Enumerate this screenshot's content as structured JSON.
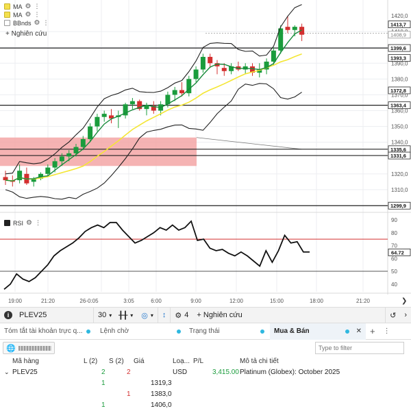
{
  "legend": [
    {
      "label": "MA",
      "color": "#f4e04d"
    },
    {
      "label": "MA",
      "color": "#f4e04d"
    },
    {
      "label": "BBnds",
      "color": "#ffffff"
    }
  ],
  "chart_research": "+ Nghiên cứu",
  "rsi_label": "RSI",
  "price_axis": [
    "1420,0",
    "1410,0",
    "1400,0",
    "1390,0",
    "1380,0",
    "1370,0",
    "1360,0",
    "1350,0",
    "1340,0",
    "1320,0",
    "1310,0",
    "1300,0"
  ],
  "rsi_axis": [
    "90",
    "80",
    "70",
    "60",
    "50",
    "40"
  ],
  "time_axis": [
    "19:00",
    "21:20",
    "26-0:05",
    "3:05",
    "6:00",
    "9:00",
    "12:00",
    "15:00",
    "18:00",
    "21:20"
  ],
  "price_tags": [
    {
      "value": "1413,7",
      "style": "dark"
    },
    {
      "value": "1408,9",
      "style": "light"
    },
    {
      "value": "1399,6",
      "style": "dark"
    },
    {
      "value": "1393,3",
      "style": "dark"
    },
    {
      "value": "1372,8",
      "style": "dark"
    },
    {
      "value": "1363,4",
      "style": "dark"
    },
    {
      "value": "1335,6",
      "style": "dark"
    },
    {
      "value": "1331,6",
      "style": "dark"
    },
    {
      "value": "1299,9",
      "style": "dark"
    }
  ],
  "rsi_tag": "64.72",
  "colors": {
    "up": "#1a9c3c",
    "down": "#d32f2f",
    "ma_fast": "#178a3a",
    "ma_slow": "#f4e634",
    "zone": "#f3a6a6"
  },
  "toolbar": {
    "symbol": "PLEV25",
    "interval": "30",
    "count": "4",
    "research": "+ Nghiên cứu"
  },
  "tabs": [
    {
      "label": "Tóm tắt tài khoản trực q..."
    },
    {
      "label": "Lệnh chờ"
    },
    {
      "label": "Trạng thái"
    },
    {
      "label": "Mua & Bán"
    }
  ],
  "filter_placeholder": "Type to filter",
  "table": {
    "headers": [
      "Mã hàng",
      "L (2)",
      "S (2)",
      "Giá",
      "Loạ...",
      "P/L",
      "Mô tả chi tiết"
    ],
    "group": {
      "symbol": "PLEV25",
      "l": "2",
      "s": "2",
      "type": "USD",
      "pl": "3,415.00",
      "desc": "Platinum (Globex): October 2025"
    },
    "rows": [
      {
        "l": "1",
        "s": "",
        "price": "1319,3"
      },
      {
        "l": "",
        "s": "1",
        "price": "1383,0"
      },
      {
        "l": "1",
        "s": "",
        "price": "1406,0"
      }
    ]
  },
  "chart_data": {
    "type": "candlestick",
    "y_range": [
      1296,
      1424
    ],
    "candles": [
      [
        1318,
        1322,
        1313,
        1316
      ],
      [
        1316,
        1319,
        1312,
        1315
      ],
      [
        1316,
        1326,
        1314,
        1322
      ],
      [
        1320,
        1324,
        1313,
        1314
      ],
      [
        1315,
        1318,
        1312,
        1317
      ],
      [
        1317,
        1321,
        1316,
        1320
      ],
      [
        1320,
        1326,
        1318,
        1324
      ],
      [
        1324,
        1330,
        1321,
        1328
      ],
      [
        1328,
        1333,
        1325,
        1331
      ],
      [
        1331,
        1335,
        1328,
        1333
      ],
      [
        1333,
        1339,
        1331,
        1337
      ],
      [
        1337,
        1344,
        1335,
        1342
      ],
      [
        1342,
        1352,
        1340,
        1350
      ],
      [
        1350,
        1358,
        1347,
        1356
      ],
      [
        1356,
        1360,
        1353,
        1358
      ],
      [
        1357,
        1361,
        1352,
        1355
      ],
      [
        1356,
        1360,
        1349,
        1357
      ],
      [
        1357,
        1365,
        1355,
        1364
      ],
      [
        1364,
        1368,
        1361,
        1366
      ],
      [
        1366,
        1367,
        1360,
        1361
      ],
      [
        1361,
        1365,
        1357,
        1363
      ],
      [
        1363,
        1366,
        1358,
        1360
      ],
      [
        1360,
        1366,
        1357,
        1364
      ],
      [
        1364,
        1372,
        1362,
        1370
      ],
      [
        1370,
        1375,
        1366,
        1373
      ],
      [
        1373,
        1378,
        1369,
        1371
      ],
      [
        1371,
        1382,
        1369,
        1380
      ],
      [
        1380,
        1388,
        1378,
        1386
      ],
      [
        1386,
        1396,
        1384,
        1394
      ],
      [
        1394,
        1396,
        1387,
        1390
      ],
      [
        1390,
        1392,
        1383,
        1388
      ],
      [
        1387,
        1390,
        1382,
        1385
      ],
      [
        1385,
        1390,
        1383,
        1388
      ],
      [
        1388,
        1391,
        1385,
        1386
      ],
      [
        1386,
        1390,
        1383,
        1388
      ],
      [
        1388,
        1390,
        1382,
        1384
      ],
      [
        1384,
        1390,
        1381,
        1386
      ],
      [
        1386,
        1393,
        1383,
        1391
      ],
      [
        1391,
        1400,
        1389,
        1398
      ],
      [
        1398,
        1414,
        1396,
        1412
      ],
      [
        1413,
        1420,
        1409,
        1411
      ],
      [
        1411,
        1414,
        1407,
        1413
      ],
      [
        1413,
        1415,
        1404,
        1408
      ]
    ],
    "rsi": [
      36,
      40,
      48,
      44,
      42,
      45,
      50,
      55,
      62,
      66,
      69,
      72,
      76,
      81,
      84,
      86,
      84,
      88,
      88,
      82,
      77,
      72,
      74,
      77,
      80,
      84,
      82,
      86,
      82,
      84,
      89,
      74,
      75,
      68,
      66,
      67,
      64,
      62,
      65,
      62,
      58,
      54,
      66,
      57,
      66,
      78,
      72,
      73,
      65,
      65
    ],
    "rsi_levels": [
      75,
      50
    ]
  }
}
